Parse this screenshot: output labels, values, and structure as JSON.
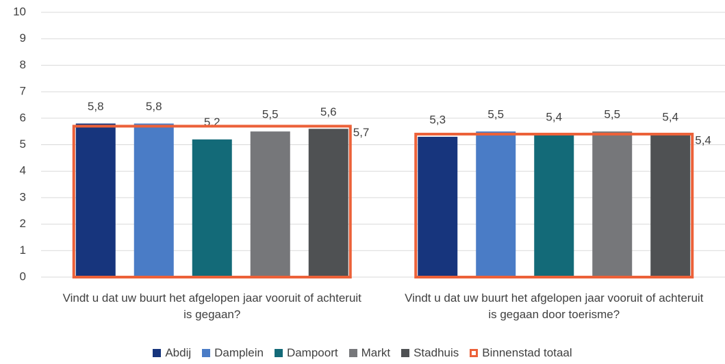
{
  "chart_data": {
    "type": "bar",
    "categories": [
      "Vindt u dat uw buurt het afgelopen jaar vooruit of achteruit is gegaan?",
      "Vindt u dat uw buurt het afgelopen jaar vooruit of achteruit is gegaan door toerisme?"
    ],
    "series": [
      {
        "name": "Abdij",
        "color": "#17357d",
        "values": [
          5.8,
          5.3
        ],
        "value_labels": [
          "5,8",
          "5,3"
        ]
      },
      {
        "name": "Damplein",
        "color": "#4a7cc6",
        "values": [
          5.8,
          5.5
        ],
        "value_labels": [
          "5,8",
          "5,5"
        ]
      },
      {
        "name": "Dampoort",
        "color": "#136a78",
        "values": [
          5.2,
          5.4
        ],
        "value_labels": [
          "5,2",
          "5,4"
        ]
      },
      {
        "name": "Markt",
        "color": "#76777a",
        "values": [
          5.5,
          5.5
        ],
        "value_labels": [
          "5,5",
          "5,5"
        ]
      },
      {
        "name": "Stadhuis",
        "color": "#4f5153",
        "values": [
          5.6,
          5.4
        ],
        "value_labels": [
          "5,6",
          "5,4"
        ]
      }
    ],
    "totals": {
      "name": "Binnenstad totaal",
      "color": "#ec6139",
      "values": [
        5.7,
        5.4
      ],
      "value_labels": [
        "5,7",
        "5,4"
      ]
    },
    "ylim": [
      0,
      10
    ],
    "yticks": [
      0,
      1,
      2,
      3,
      4,
      5,
      6,
      7,
      8,
      9,
      10
    ],
    "grid": true
  }
}
